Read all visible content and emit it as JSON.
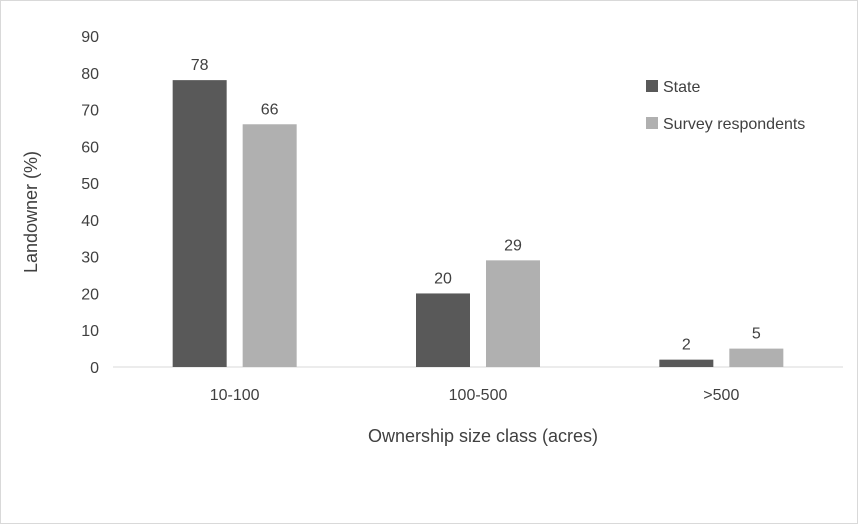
{
  "chart_data": {
    "type": "bar",
    "categories": [
      "10-100",
      "100-500",
      ">500"
    ],
    "series": [
      {
        "name": "State",
        "values": [
          78,
          20,
          2
        ],
        "color": "#595959"
      },
      {
        "name": "Survey respondents",
        "values": [
          66,
          29,
          5
        ],
        "color": "#b0b0b0"
      }
    ],
    "title": "",
    "xlabel": "Ownership size class (acres)",
    "ylabel": "Landowner (%)",
    "ylim": [
      0,
      90
    ],
    "yticks": [
      0,
      10,
      20,
      30,
      40,
      50,
      60,
      70,
      80,
      90
    ],
    "data_labels": true,
    "grid": false,
    "legend_position": "top-right"
  }
}
